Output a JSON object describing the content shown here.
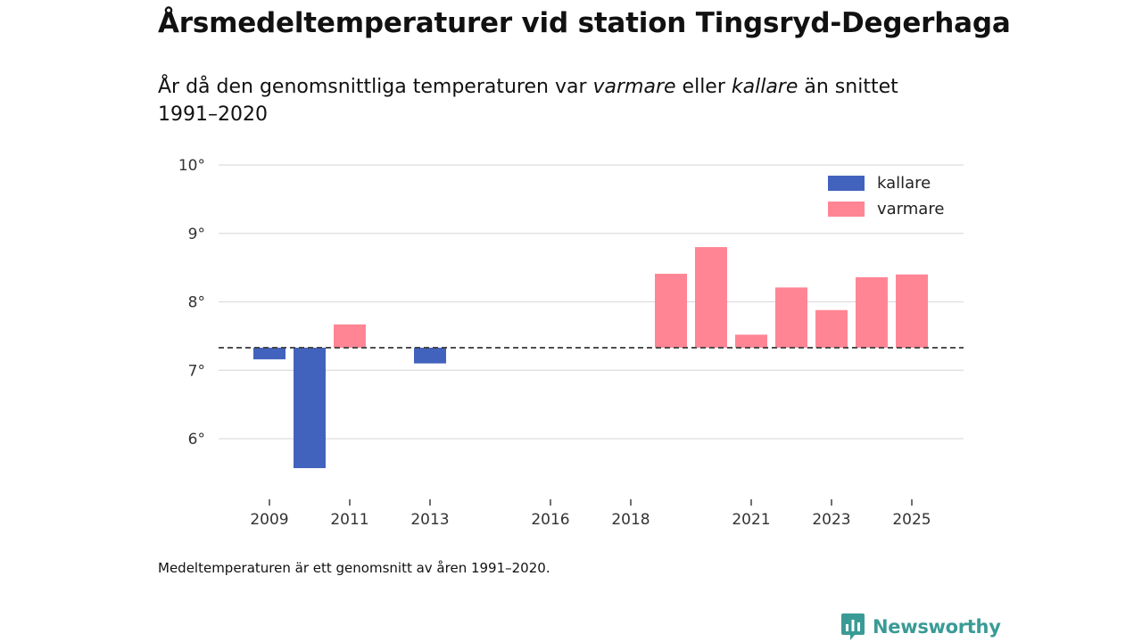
{
  "title": "Årsmedeltemperaturer vid station Tingsryd-Degerhaga",
  "subtitle": {
    "part1": "År då den genomsnittliga temperaturen var ",
    "warm": "varmare",
    "part2": " eller ",
    "cold": "kallare",
    "part3": " än snittet 1991–2020"
  },
  "footnote": "Medeltemperaturen är ett genomsnitt av åren 1991–2020.",
  "brand": "Newsworthy",
  "colors": {
    "colder": "#4263bd",
    "warmer": "#ff8595",
    "grid": "#dddddd",
    "reference": "#444444",
    "brand": "#3a9b96"
  },
  "chart_data": {
    "type": "bar",
    "title": "Årsmedeltemperaturer vid station Tingsryd-Degerhaga",
    "xlabel": "",
    "ylabel": "",
    "reference_value": 7.33,
    "ylim": [
      5.2,
      10.0
    ],
    "y_ticks": [
      6,
      7,
      8,
      9,
      10
    ],
    "y_tick_suffix": "°",
    "x_range": [
      2008,
      2026
    ],
    "x_ticks": [
      2009,
      2011,
      2013,
      2016,
      2018,
      2021,
      2023,
      2025
    ],
    "legend": [
      {
        "key": "colder",
        "label": "kallare"
      },
      {
        "key": "warmer",
        "label": "varmare"
      }
    ],
    "legend_position": "top-right",
    "bars": [
      {
        "year": 2009,
        "value": 7.16,
        "group": "colder"
      },
      {
        "year": 2010,
        "value": 5.57,
        "group": "colder"
      },
      {
        "year": 2011,
        "value": 7.67,
        "group": "warmer"
      },
      {
        "year": 2013,
        "value": 7.1,
        "group": "colder"
      },
      {
        "year": 2019,
        "value": 8.41,
        "group": "warmer"
      },
      {
        "year": 2020,
        "value": 8.8,
        "group": "warmer"
      },
      {
        "year": 2021,
        "value": 7.52,
        "group": "warmer"
      },
      {
        "year": 2022,
        "value": 8.21,
        "group": "warmer"
      },
      {
        "year": 2023,
        "value": 7.88,
        "group": "warmer"
      },
      {
        "year": 2024,
        "value": 8.36,
        "group": "warmer"
      },
      {
        "year": 2025,
        "value": 8.4,
        "group": "warmer"
      }
    ]
  }
}
